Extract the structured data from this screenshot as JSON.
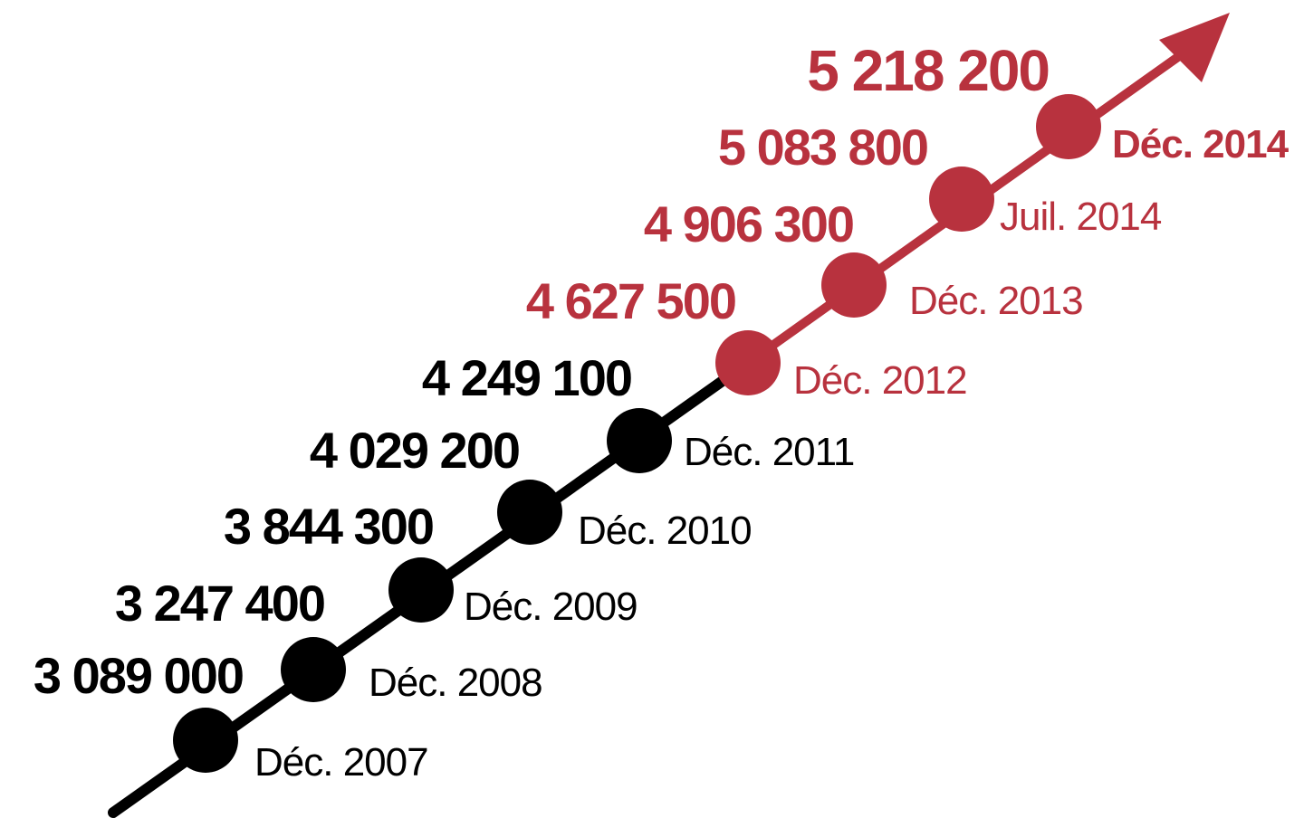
{
  "chart_data": {
    "type": "line",
    "title": "",
    "xlabel": "",
    "ylabel": "",
    "x": [
      "Déc. 2007",
      "Déc. 2008",
      "Déc. 2009",
      "Déc. 2010",
      "Déc. 2011",
      "Déc. 2012",
      "Déc. 2013",
      "Juil. 2014",
      "Déc. 2014"
    ],
    "values": [
      3089000,
      3247400,
      3844300,
      4029200,
      4249100,
      4627500,
      4906300,
      5083800,
      5218200
    ],
    "value_labels": [
      "3 089 000",
      "3 247 400",
      "3 844 300",
      "4 029 200",
      "4 249 100",
      "4 627 500",
      "4 906 300",
      "5 083 800",
      "5 218 200"
    ],
    "grid": false,
    "legend": "none"
  },
  "colors": {
    "past": "#000000",
    "recent": "#b8323e",
    "background": "#ffffff"
  },
  "icons": {
    "trend_arrow": "arrow-up-right-icon"
  }
}
